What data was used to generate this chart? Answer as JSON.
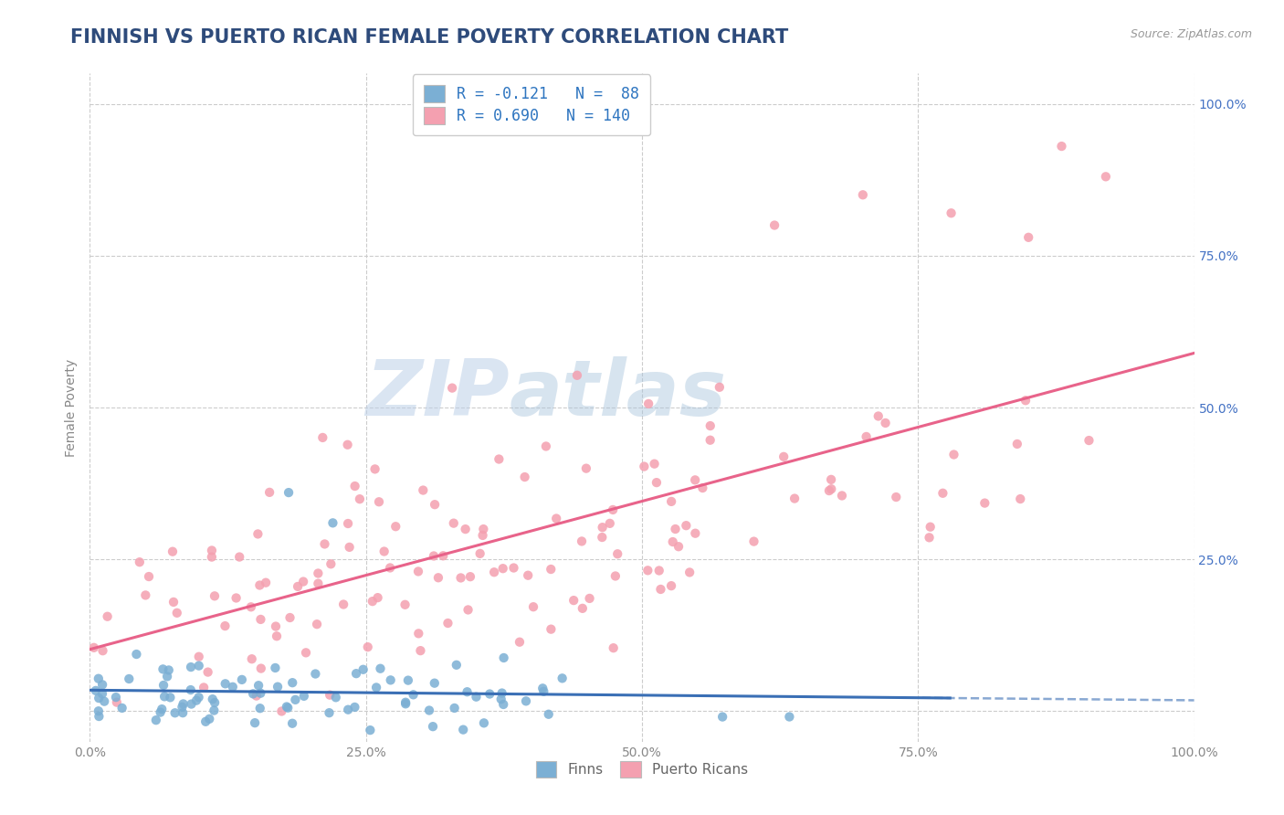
{
  "title": "FINNISH VS PUERTO RICAN FEMALE POVERTY CORRELATION CHART",
  "source": "Source: ZipAtlas.com",
  "ylabel": "Female Poverty",
  "title_color": "#2E4B7B",
  "title_fontsize": 15,
  "background_color": "#ffffff",
  "watermark_zip": "ZIP",
  "watermark_atlas": "atlas",
  "finns_R": -0.121,
  "finns_N": 88,
  "pr_R": 0.69,
  "pr_N": 140,
  "finns_color": "#7BAFD4",
  "pr_color": "#F4A0B0",
  "finns_line_color": "#3A6FB5",
  "pr_line_color": "#E8638A",
  "legend_label_finns": "Finns",
  "legend_label_pr": "Puerto Ricans",
  "x_ticks": [
    0.0,
    0.25,
    0.5,
    0.75,
    1.0
  ],
  "x_tick_labels": [
    "0.0%",
    "25.0%",
    "50.0%",
    "75.0%",
    "100.0%"
  ],
  "y_ticks": [
    0.0,
    0.25,
    0.5,
    0.75,
    1.0
  ],
  "right_y_labels": [
    "25.0%",
    "50.0%",
    "75.0%",
    "100.0%"
  ],
  "xlim": [
    0.0,
    1.0
  ],
  "ylim": [
    -0.05,
    1.05
  ],
  "grid_color": "#CCCCCC"
}
